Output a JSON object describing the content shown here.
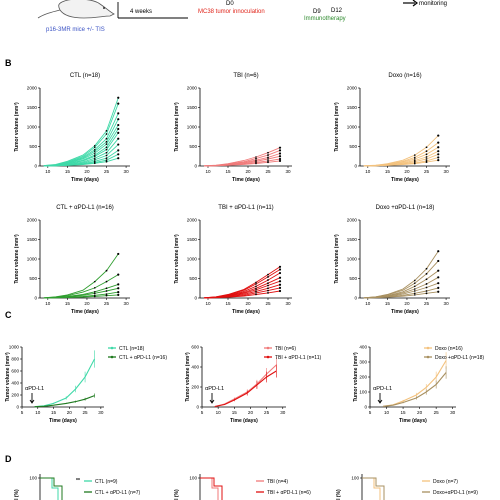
{
  "header": {
    "mice_label": "p16-3MR mice +/- TIS",
    "weeks_label": "4 weeks",
    "d0_label": "D0",
    "tumor_label": "MC38 tumor innoculation",
    "d9_label": "D9",
    "d12_label": "D12",
    "immuno_label": "Immunotherapy",
    "monitoring_label": "monitoring",
    "colors": {
      "tumor": "#e0251b",
      "immuno": "#2e8b2e",
      "mice": "#3a52c4"
    }
  },
  "panel_labels": [
    "B",
    "C",
    "D"
  ],
  "chart_data": [
    {
      "type": "line",
      "panel": "B",
      "title": "CTL (n=18)",
      "color": "#3fd9a8",
      "xlabel": "Time (days)",
      "ylabel": "Tumor volume (mm³)",
      "xlim": [
        8,
        31
      ],
      "ylim": [
        0,
        2000
      ],
      "xticks": [
        "10",
        "15",
        "20",
        "25",
        "30"
      ],
      "yticks": [
        "0",
        "500",
        "1000",
        "1500",
        "2000"
      ],
      "x": [
        9,
        12,
        15,
        19,
        22,
        25,
        28
      ],
      "series": [
        {
          "values": [
            10,
            40,
            120,
            280,
            520,
            900,
            1750
          ]
        },
        {
          "values": [
            10,
            30,
            100,
            250,
            480,
            820,
            1600
          ]
        },
        {
          "values": [
            5,
            25,
            90,
            220,
            420,
            700,
            1350
          ]
        },
        {
          "values": [
            5,
            20,
            80,
            200,
            380,
            620,
            1200
          ]
        },
        {
          "values": [
            5,
            20,
            70,
            180,
            330,
            560,
            1050
          ]
        },
        {
          "values": [
            5,
            18,
            60,
            150,
            280,
            480,
            950
          ]
        },
        {
          "values": [
            4,
            15,
            50,
            130,
            250,
            420,
            850
          ]
        },
        {
          "values": [
            4,
            12,
            40,
            100,
            200,
            340,
            700
          ]
        },
        {
          "values": [
            3,
            10,
            30,
            80,
            160,
            270,
            550
          ]
        },
        {
          "values": [
            3,
            8,
            25,
            60,
            120,
            200,
            400
          ]
        },
        {
          "values": [
            2,
            6,
            20,
            45,
            90,
            150,
            300
          ]
        },
        {
          "values": [
            2,
            5,
            15,
            35,
            70,
            110,
            200
          ]
        }
      ]
    },
    {
      "type": "line",
      "panel": "B",
      "title": "TBI (n=6)",
      "color": "#f07a7a",
      "xlabel": "Time (days)",
      "ylabel": "Tumor volume (mm³)",
      "xlim": [
        8,
        31
      ],
      "ylim": [
        0,
        2000
      ],
      "xticks": [
        "10",
        "15",
        "20",
        "25",
        "30"
      ],
      "yticks": [
        "0",
        "500",
        "1000",
        "1500",
        "2000"
      ],
      "x": [
        9,
        12,
        15,
        19,
        22,
        25,
        28
      ],
      "series": [
        {
          "values": [
            5,
            20,
            60,
            140,
            230,
            340,
            470
          ]
        },
        {
          "values": [
            5,
            15,
            50,
            110,
            190,
            280,
            400
          ]
        },
        {
          "values": [
            4,
            12,
            40,
            90,
            150,
            220,
            320
          ]
        },
        {
          "values": [
            3,
            10,
            30,
            70,
            120,
            180,
            250
          ]
        },
        {
          "values": [
            2,
            8,
            25,
            55,
            90,
            130,
            180
          ]
        },
        {
          "values": [
            2,
            6,
            18,
            40,
            65,
            95,
            130
          ]
        }
      ]
    },
    {
      "type": "line",
      "panel": "B",
      "title": "Doxo (n=16)",
      "color": "#f3c27e",
      "xlabel": "Time (days)",
      "ylabel": "Tumor volume (mm³)",
      "xlim": [
        8,
        31
      ],
      "ylim": [
        0,
        2000
      ],
      "xticks": [
        "10",
        "15",
        "20",
        "25",
        "30"
      ],
      "yticks": [
        "0",
        "500",
        "1000",
        "1500",
        "2000"
      ],
      "x": [
        9,
        12,
        15,
        19,
        22,
        25,
        28
      ],
      "series": [
        {
          "values": [
            5,
            20,
            60,
            150,
            280,
            480,
            780
          ]
        },
        {
          "values": [
            5,
            15,
            50,
            120,
            220,
            380,
            600
          ]
        },
        {
          "values": [
            4,
            12,
            40,
            100,
            180,
            300,
            480
          ]
        },
        {
          "values": [
            3,
            10,
            30,
            80,
            140,
            230,
            380
          ]
        },
        {
          "values": [
            3,
            8,
            25,
            60,
            110,
            180,
            300
          ]
        },
        {
          "values": [
            2,
            6,
            20,
            45,
            80,
            130,
            220
          ]
        },
        {
          "values": [
            2,
            5,
            15,
            35,
            60,
            100,
            150
          ]
        }
      ]
    },
    {
      "type": "line",
      "panel": "B",
      "title": "CTL + αPD-L1 (n=16)",
      "color": "#2f9e2f",
      "xlabel": "Time (days)",
      "ylabel": "Tumor volume (mm³)",
      "xlim": [
        8,
        31
      ],
      "ylim": [
        0,
        2000
      ],
      "xticks": [
        "10",
        "15",
        "20",
        "25",
        "30"
      ],
      "yticks": [
        "0",
        "500",
        "1000",
        "1500",
        "2000"
      ],
      "x": [
        9,
        12,
        15,
        19,
        22,
        25,
        28
      ],
      "series": [
        {
          "values": [
            5,
            30,
            80,
            200,
            420,
            700,
            1130
          ]
        },
        {
          "values": [
            5,
            20,
            60,
            150,
            260,
            420,
            600
          ]
        },
        {
          "values": [
            4,
            15,
            40,
            90,
            160,
            250,
            350
          ]
        },
        {
          "values": [
            3,
            10,
            30,
            70,
            120,
            180,
            250
          ]
        },
        {
          "values": [
            2,
            8,
            20,
            40,
            70,
            100,
            150
          ]
        },
        {
          "values": [
            2,
            5,
            12,
            25,
            40,
            60,
            80
          ]
        }
      ]
    },
    {
      "type": "line",
      "panel": "B",
      "title": "TBI + αPD-L1 (n=11)",
      "color": "#e01010",
      "xlabel": "Time (days)",
      "ylabel": "Tumor volume (mm³)",
      "xlim": [
        8,
        31
      ],
      "ylim": [
        0,
        2000
      ],
      "xticks": [
        "10",
        "15",
        "20",
        "25",
        "30"
      ],
      "yticks": [
        "0",
        "500",
        "1000",
        "1500",
        "2000"
      ],
      "x": [
        9,
        12,
        15,
        19,
        22,
        25,
        28
      ],
      "series": [
        {
          "values": [
            5,
            30,
            90,
            220,
            400,
            600,
            800
          ]
        },
        {
          "values": [
            5,
            25,
            80,
            200,
            360,
            540,
            730
          ]
        },
        {
          "values": [
            4,
            20,
            70,
            170,
            300,
            460,
            640
          ]
        },
        {
          "values": [
            4,
            18,
            60,
            140,
            250,
            380,
            520
          ]
        },
        {
          "values": [
            3,
            15,
            50,
            120,
            210,
            320,
            430
          ]
        },
        {
          "values": [
            3,
            12,
            40,
            95,
            170,
            250,
            340
          ]
        },
        {
          "values": [
            2,
            10,
            30,
            70,
            130,
            190,
            260
          ]
        },
        {
          "values": [
            2,
            8,
            20,
            50,
            90,
            130,
            180
          ]
        }
      ]
    },
    {
      "type": "line",
      "panel": "B",
      "title": "Doxo +αPD-L1 (n=18)",
      "color": "#a89060",
      "xlabel": "Time (days)",
      "ylabel": "Tumor volume (mm³)",
      "xlim": [
        8,
        31
      ],
      "ylim": [
        0,
        2000
      ],
      "xticks": [
        "10",
        "15",
        "20",
        "25",
        "30"
      ],
      "yticks": [
        "0",
        "500",
        "1000",
        "1500",
        "2000"
      ],
      "x": [
        9,
        12,
        15,
        19,
        22,
        25,
        28
      ],
      "series": [
        {
          "values": [
            5,
            30,
            90,
            230,
            450,
            750,
            1200
          ]
        },
        {
          "values": [
            5,
            25,
            80,
            200,
            380,
            620,
            950
          ]
        },
        {
          "values": [
            4,
            20,
            60,
            160,
            300,
            480,
            700
          ]
        },
        {
          "values": [
            4,
            15,
            50,
            130,
            230,
            360,
            530
          ]
        },
        {
          "values": [
            3,
            12,
            40,
            100,
            180,
            270,
            380
          ]
        },
        {
          "values": [
            3,
            10,
            30,
            70,
            120,
            180,
            260
          ]
        },
        {
          "values": [
            2,
            8,
            20,
            45,
            80,
            120,
            160
          ]
        }
      ]
    },
    {
      "type": "line",
      "panel": "C",
      "color": "#3fd9a8",
      "color2": "#1f7a1f",
      "xlabel": "Time (days)",
      "ylabel": "Tumor volume (mm³)",
      "xlim": [
        5,
        31
      ],
      "ylim": [
        0,
        1000
      ],
      "xticks": [
        "5",
        "10",
        "15",
        "20",
        "25",
        "30"
      ],
      "yticks": [
        "0",
        "200",
        "400",
        "600",
        "800",
        "1000"
      ],
      "annotation": "αPD-L1",
      "x": [
        9,
        12,
        15,
        19,
        22,
        25,
        28
      ],
      "series": [
        {
          "name": "CTL (n=18)",
          "values": [
            5,
            20,
            60,
            150,
            300,
            500,
            800
          ]
        },
        {
          "name": "CTL + αPD-L1 (n=16)",
          "values": [
            5,
            12,
            30,
            60,
            90,
            130,
            190
          ]
        }
      ]
    },
    {
      "type": "line",
      "panel": "C",
      "color": "#f07a7a",
      "color2": "#e01010",
      "xlabel": "Time (days)",
      "ylabel": "Tumor volume (mm³)",
      "xlim": [
        5,
        31
      ],
      "ylim": [
        0,
        600
      ],
      "xticks": [
        "5",
        "10",
        "15",
        "20",
        "25",
        "30"
      ],
      "yticks": [
        "0",
        "200",
        "400",
        "600"
      ],
      "annotation": "αPD-L1",
      "x": [
        9,
        12,
        15,
        19,
        22,
        25,
        28
      ],
      "series": [
        {
          "name": "TBI (n=6)",
          "values": [
            5,
            30,
            80,
            150,
            230,
            330,
            420
          ]
        },
        {
          "name": "TBI + αPD-L1 (n=11)",
          "values": [
            5,
            25,
            70,
            140,
            220,
            300,
            360
          ]
        }
      ]
    },
    {
      "type": "line",
      "panel": "C",
      "color": "#f3c27e",
      "color2": "#a89060",
      "xlabel": "Time (days)",
      "ylabel": "Tumor volume (mm³)",
      "xlim": [
        5,
        31
      ],
      "ylim": [
        0,
        400
      ],
      "xticks": [
        "5",
        "10",
        "15",
        "20",
        "25",
        "30"
      ],
      "yticks": [
        "0",
        "100",
        "200",
        "300",
        "400"
      ],
      "annotation": "αPD-L1",
      "x": [
        9,
        12,
        15,
        19,
        22,
        25,
        28
      ],
      "series": [
        {
          "name": "Doxo (n=16)",
          "values": [
            5,
            15,
            40,
            80,
            130,
            200,
            310
          ]
        },
        {
          "name": "Doxo +αPD-L1 (n=18)",
          "values": [
            5,
            12,
            30,
            60,
            100,
            150,
            230
          ]
        }
      ]
    }
  ],
  "survival": {
    "ytick": "100",
    "ylabel_fragment": "al (%)",
    "stars": "**",
    "panels": [
      {
        "legend": [
          "CTL (n=9)",
          "CTL + αPD-L1 (n=7)"
        ],
        "colors": [
          "#3fd9a8",
          "#1f7a1f"
        ]
      },
      {
        "legend": [
          "TBI (n=4)",
          "TBI + αPD-L1 (n=6)"
        ],
        "colors": [
          "#f07a7a",
          "#e01010"
        ]
      },
      {
        "legend": [
          "Doxo (n=7)",
          "Doxo+αPD-L1 (n=9)"
        ],
        "colors": [
          "#f3c27e",
          "#a89060"
        ]
      }
    ]
  }
}
